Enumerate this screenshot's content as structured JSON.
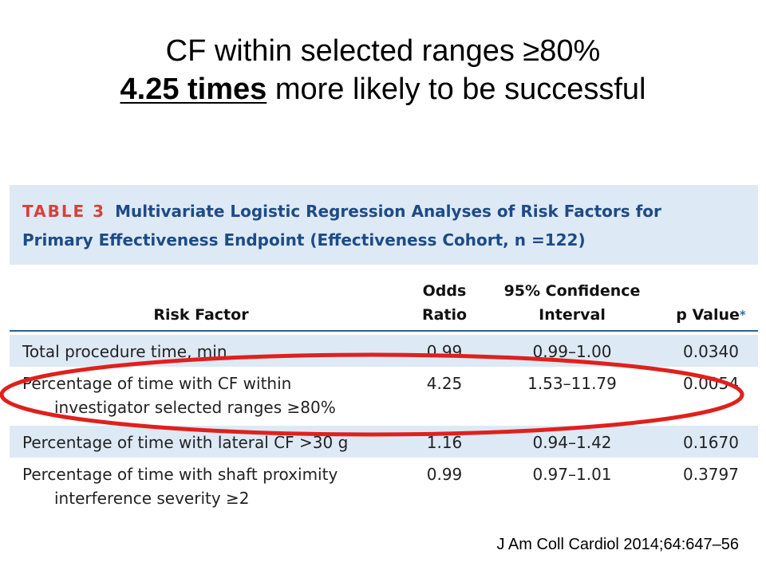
{
  "slide": {
    "title_line1": "CF within selected ranges ≥80%",
    "title_line2_emphasis": "4.25 times",
    "title_line2_rest": " more likely to be successful",
    "citation": "J Am Coll Cardiol 2014;64:647–56"
  },
  "table": {
    "label": "TABLE 3",
    "caption_line1": "Multivariate Logistic Regression Analyses of Risk Factors for",
    "caption_line2": "Primary Effectiveness Endpoint (Effectiveness Cohort, n =122)",
    "headers": {
      "risk_factor": "Risk Factor",
      "odds_line1": "Odds",
      "odds_line2": "Ratio",
      "ci_line1": "95% Confidence",
      "ci_line2": "Interval",
      "p_value": "p Value",
      "p_value_marker": "*"
    },
    "rows": [
      {
        "risk_line1": "Total procedure time, min",
        "risk_line2": "",
        "odds_ratio": "0.99",
        "ci": "0.99–1.00",
        "p_value": "0.0340"
      },
      {
        "risk_line1": "Percentage of time with CF within",
        "risk_line2": "investigator selected ranges ≥80%",
        "odds_ratio": "4.25",
        "ci": "1.53–11.79",
        "p_value": "0.0054"
      },
      {
        "risk_line1": "Percentage of time with lateral CF >30 g",
        "risk_line2": "",
        "odds_ratio": "1.16",
        "ci": "0.94–1.42",
        "p_value": "0.1670"
      },
      {
        "risk_line1": "Percentage of time with shaft proximity",
        "risk_line2": "interference severity ≥2",
        "odds_ratio": "0.99",
        "ci": "0.97–1.01",
        "p_value": "0.3797"
      }
    ]
  },
  "colors": {
    "band": "#dde9f5",
    "caption_blue": "#1e4b86",
    "label_red": "#d7413b",
    "highlight_ellipse": "#e0201c"
  }
}
